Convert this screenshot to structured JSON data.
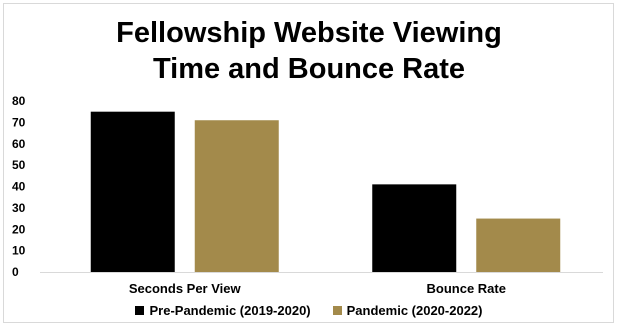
{
  "chart_data": {
    "type": "bar",
    "title_lines": [
      "Fellowship Website Viewing",
      "Time and Bounce Rate"
    ],
    "categories": [
      "Seconds Per View",
      "Bounce Rate"
    ],
    "series": [
      {
        "name": "Pre-Pandemic (2019-2020)",
        "values": [
          75,
          41
        ],
        "color": "#000000"
      },
      {
        "name": "Pandemic (2020-2022)",
        "values": [
          71,
          25
        ],
        "color": "#a38a4b"
      }
    ],
    "ylim": [
      0,
      80
    ],
    "yticks": [
      0,
      10,
      20,
      30,
      40,
      50,
      60,
      70,
      80
    ],
    "grid": false,
    "legend_position": "bottom"
  }
}
